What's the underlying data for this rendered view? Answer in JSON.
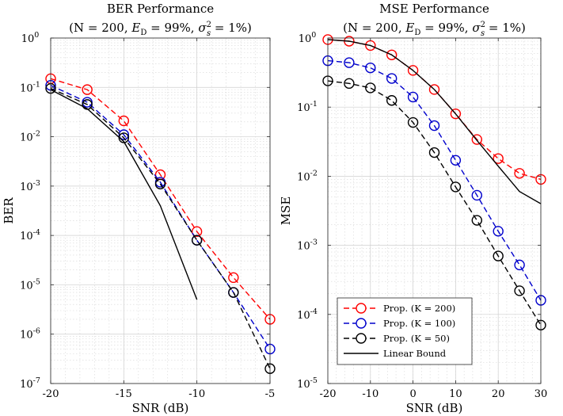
{
  "chart_data": [
    {
      "type": "line",
      "title": "BER Performance",
      "subtitle": "(N = 200, E_D = 99%, σ_s^2 = 1%)",
      "xlabel": "SNR (dB)",
      "ylabel": "BER",
      "xlim": [
        -20,
        -5
      ],
      "ylim": [
        1e-07,
        1
      ],
      "yscale": "log",
      "grid": true,
      "xticks": [
        -20,
        -15,
        -10,
        -5
      ],
      "xtick_labels": [
        "-20",
        "-15",
        "-10",
        "-5"
      ],
      "yticks": [
        1e-07,
        1e-06,
        1e-05,
        0.0001,
        0.001,
        0.01,
        0.1,
        1
      ],
      "ytick_labels": [
        {
          "base": "10",
          "exp": "-7"
        },
        {
          "base": "10",
          "exp": "-6"
        },
        {
          "base": "10",
          "exp": "-5"
        },
        {
          "base": "10",
          "exp": "-4"
        },
        {
          "base": "10",
          "exp": "-3"
        },
        {
          "base": "10",
          "exp": "-2"
        },
        {
          "base": "10",
          "exp": "-1"
        },
        {
          "base": "10",
          "exp": "0"
        }
      ],
      "series": [
        {
          "key": "k200",
          "color": "#ff0000",
          "style": "dashed",
          "marker": "circle",
          "x": [
            -20,
            -17.5,
            -15,
            -12.5,
            -10,
            -7.5,
            -5
          ],
          "y": [
            0.15,
            0.09,
            0.021,
            0.0017,
            0.00012,
            1.4e-05,
            2e-06
          ]
        },
        {
          "key": "k100",
          "color": "#0000cc",
          "style": "dashed",
          "marker": "circle",
          "x": [
            -20,
            -17.5,
            -15,
            -12.5,
            -10,
            -7.5,
            -5
          ],
          "y": [
            0.11,
            0.05,
            0.011,
            0.0012,
            8e-05,
            7e-06,
            5e-07
          ]
        },
        {
          "key": "k50",
          "color": "#000000",
          "style": "dashed",
          "marker": "circle",
          "x": [
            -20,
            -17.5,
            -15,
            -12.5,
            -10,
            -7.5,
            -5
          ],
          "y": [
            0.095,
            0.045,
            0.0095,
            0.0011,
            8e-05,
            7e-06,
            2e-07
          ]
        },
        {
          "key": "bound",
          "color": "#000000",
          "style": "solid",
          "marker": "none",
          "x": [
            -20,
            -17.5,
            -15,
            -12.5,
            -10
          ],
          "y": [
            0.09,
            0.037,
            0.008,
            0.0004,
            5e-06
          ]
        }
      ]
    },
    {
      "type": "line",
      "title": "MSE Performance",
      "subtitle": "(N = 200, E_D = 99%, σ_s^2 = 1%)",
      "xlabel": "SNR (dB)",
      "ylabel": "MSE",
      "xlim": [
        -20,
        30
      ],
      "ylim": [
        1e-05,
        1
      ],
      "yscale": "log",
      "grid": true,
      "legend_position": "bottom-left",
      "xticks": [
        -20,
        -10,
        0,
        10,
        20,
        30
      ],
      "xtick_labels": [
        "-20",
        "-10",
        "0",
        "10",
        "20",
        "30"
      ],
      "yticks": [
        1e-05,
        0.0001,
        0.001,
        0.01,
        0.1,
        1
      ],
      "ytick_labels": [
        {
          "base": "10",
          "exp": "-5"
        },
        {
          "base": "10",
          "exp": "-4"
        },
        {
          "base": "10",
          "exp": "-3"
        },
        {
          "base": "10",
          "exp": "-2"
        },
        {
          "base": "10",
          "exp": "-1"
        },
        {
          "base": "10",
          "exp": "0"
        }
      ],
      "series": [
        {
          "key": "k200",
          "color": "#ff0000",
          "style": "dashed",
          "marker": "circle",
          "x": [
            -20,
            -15,
            -10,
            -5,
            0,
            5,
            10,
            15,
            20,
            25,
            30
          ],
          "y": [
            0.95,
            0.9,
            0.78,
            0.57,
            0.34,
            0.18,
            0.08,
            0.034,
            0.018,
            0.011,
            0.009
          ]
        },
        {
          "key": "k100",
          "color": "#0000cc",
          "style": "dashed",
          "marker": "circle",
          "x": [
            -20,
            -15,
            -10,
            -5,
            0,
            5,
            10,
            15,
            20,
            25,
            30
          ],
          "y": [
            0.47,
            0.44,
            0.37,
            0.26,
            0.14,
            0.054,
            0.017,
            0.0053,
            0.0016,
            0.00052,
            0.00016
          ]
        },
        {
          "key": "k50",
          "color": "#000000",
          "style": "dashed",
          "marker": "circle",
          "x": [
            -20,
            -15,
            -10,
            -5,
            0,
            5,
            10,
            15,
            20,
            25,
            30
          ],
          "y": [
            0.24,
            0.22,
            0.19,
            0.125,
            0.06,
            0.022,
            0.007,
            0.0023,
            0.0007,
            0.00022,
            7e-05
          ]
        },
        {
          "key": "bound",
          "color": "#000000",
          "style": "solid",
          "marker": "none",
          "x": [
            -20,
            -15,
            -10,
            -5,
            0,
            5,
            10,
            15,
            20,
            25,
            30
          ],
          "y": [
            0.95,
            0.9,
            0.78,
            0.57,
            0.34,
            0.18,
            0.08,
            0.033,
            0.014,
            0.006,
            0.004
          ]
        }
      ],
      "legend": [
        {
          "series": "k200",
          "label": "Prop. (K = 200)"
        },
        {
          "series": "k100",
          "label": "Prop. (K = 100)"
        },
        {
          "series": "k50",
          "label": "Prop. (K = 50)"
        },
        {
          "series": "bound",
          "label": "Linear Bound"
        }
      ]
    }
  ]
}
